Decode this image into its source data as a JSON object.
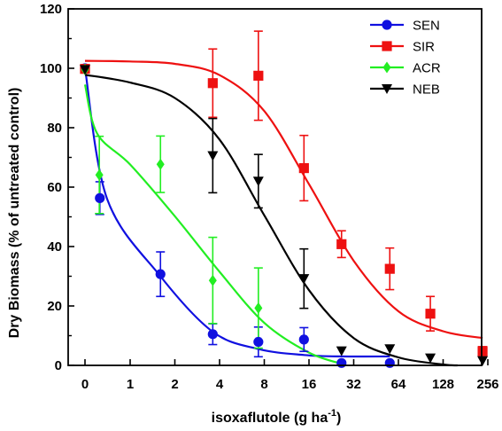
{
  "chart_data": {
    "type": "scatter",
    "title": "",
    "xlabel": "isoxaflutole (g ha",
    "xlabel_sup": "-1",
    "xlabel_end": ")",
    "ylabel": "Dry Biomass (% of untreated control)",
    "x_scale": "log2 with 0 at left",
    "x_ticks": [
      0,
      1,
      2,
      4,
      8,
      16,
      32,
      64,
      128,
      256
    ],
    "x_tick_labels": [
      "0",
      "1",
      "2",
      "4",
      "8",
      "16",
      "32",
      "64",
      "128",
      "256"
    ],
    "ylim": [
      0,
      120
    ],
    "y_ticks": [
      0,
      20,
      40,
      60,
      80,
      100,
      120
    ],
    "y_tick_labels": [
      "0",
      "20",
      "40",
      "60",
      "80",
      "100",
      "120"
    ],
    "grid": false,
    "legend_position": "top-right",
    "series": [
      {
        "name": "SEN",
        "color": "#1010e0",
        "marker": "circle",
        "points": [
          {
            "x": 0,
            "y": 100,
            "err": 0
          },
          {
            "x": 0.625,
            "y": 56.3,
            "err": 5.5
          },
          {
            "x": 1.6,
            "y": 30.7,
            "err": 7.5
          },
          {
            "x": 3.6,
            "y": 10.5,
            "err": 3.5
          },
          {
            "x": 7.3,
            "y": 7.9,
            "err": 5.0
          },
          {
            "x": 14.8,
            "y": 8.7,
            "err": 4.0
          },
          {
            "x": 26.5,
            "y": 0.8,
            "err": 0
          },
          {
            "x": 56,
            "y": 0.8,
            "err": 0
          }
        ],
        "curve": [
          [
            0,
            100
          ],
          [
            0.7,
            56
          ],
          [
            1.6,
            30
          ],
          [
            3.6,
            11.3
          ],
          [
            7.3,
            5.5
          ],
          [
            14.8,
            3.5
          ],
          [
            26.5,
            3.0
          ],
          [
            56,
            3.0
          ]
        ]
      },
      {
        "name": "SIR",
        "color": "#ee1111",
        "marker": "square",
        "points": [
          {
            "x": 0,
            "y": 99.8,
            "err": 0
          },
          {
            "x": 3.6,
            "y": 95.0,
            "err": 11.5
          },
          {
            "x": 7.3,
            "y": 97.5,
            "err": 15.0
          },
          {
            "x": 14.8,
            "y": 66.4,
            "err": 11.0
          },
          {
            "x": 26.5,
            "y": 40.8,
            "err": 4.5
          },
          {
            "x": 56,
            "y": 32.5,
            "err": 7.0
          },
          {
            "x": 105,
            "y": 17.4,
            "err": 5.8
          },
          {
            "x": 236,
            "y": 4.8,
            "err": 1.5
          }
        ],
        "curve": [
          [
            0,
            102.5
          ],
          [
            1,
            102.3
          ],
          [
            2,
            101.5
          ],
          [
            4,
            97.7
          ],
          [
            8,
            85.6
          ],
          [
            16,
            61
          ],
          [
            32,
            35.2
          ],
          [
            64,
            18.2
          ],
          [
            128,
            11.5
          ],
          [
            236,
            9.2
          ]
        ]
      },
      {
        "name": "ACR",
        "color": "#22ee22",
        "marker": "diamond",
        "points": [
          {
            "x": 0,
            "y": 99.6,
            "err": 0
          },
          {
            "x": 0.62,
            "y": 64.1,
            "err": 13.0
          },
          {
            "x": 1.6,
            "y": 67.7,
            "err": 9.5
          },
          {
            "x": 3.6,
            "y": 28.6,
            "err": 14.5
          },
          {
            "x": 7.3,
            "y": 19.3,
            "err": 13.5
          }
        ],
        "curve": [
          [
            0,
            94.5
          ],
          [
            0.6,
            78
          ],
          [
            1,
            67.6
          ],
          [
            2,
            50.2
          ],
          [
            4,
            31.5
          ],
          [
            8,
            14.3
          ],
          [
            16,
            4.3
          ],
          [
            28,
            0.2
          ]
        ]
      },
      {
        "name": "NEB",
        "color": "#000000",
        "marker": "triangle-down",
        "points": [
          {
            "x": 0,
            "y": 99.6,
            "err": 0
          },
          {
            "x": 3.6,
            "y": 70.6,
            "err": 12.5
          },
          {
            "x": 7.3,
            "y": 62.0,
            "err": 9.0
          },
          {
            "x": 14.8,
            "y": 29.2,
            "err": 10.0
          },
          {
            "x": 26.5,
            "y": 4.9,
            "err": 0
          },
          {
            "x": 56,
            "y": 5.6,
            "err": 0
          },
          {
            "x": 105,
            "y": 2.5,
            "err": 0
          },
          {
            "x": 236,
            "y": 1.6,
            "err": 0
          }
        ],
        "curve": [
          [
            0,
            97.8
          ],
          [
            1,
            95.2
          ],
          [
            2,
            90
          ],
          [
            4,
            76
          ],
          [
            8,
            50.5
          ],
          [
            16,
            25.3
          ],
          [
            32,
            9.2
          ],
          [
            64,
            2.7
          ],
          [
            128,
            0.3
          ],
          [
            160,
            0
          ]
        ]
      }
    ]
  }
}
